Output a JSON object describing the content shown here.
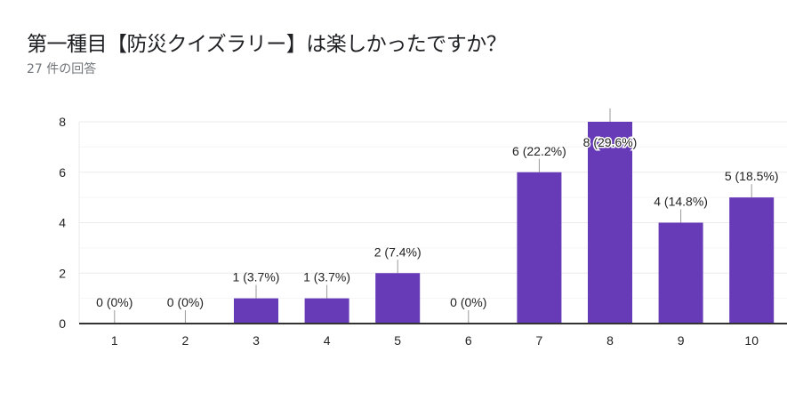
{
  "header": {
    "title": "第一種目【防災クイズラリー】は楽しかったですか？",
    "response_count": "27 件の回答"
  },
  "colors": {
    "bar": "#673ab7",
    "grid": "#ebebeb",
    "minor_grid": "#f5f5f5",
    "axis": "#333333",
    "text": "#222222",
    "leader": "#999999"
  },
  "chart_data": {
    "type": "bar",
    "categories": [
      "1",
      "2",
      "3",
      "4",
      "5",
      "6",
      "7",
      "8",
      "9",
      "10"
    ],
    "values": [
      0,
      0,
      1,
      1,
      2,
      0,
      6,
      8,
      4,
      5
    ],
    "data_labels": [
      "0 (0%)",
      "0 (0%)",
      "1 (3.7%)",
      "1 (3.7%)",
      "2 (7.4%)",
      "0 (0%)",
      "6 (22.2%)",
      "8 (29.6%)",
      "4 (14.8%)",
      "5 (18.5%)"
    ],
    "ylim": [
      0,
      8
    ],
    "yticks": [
      "0",
      "2",
      "4",
      "6",
      "8"
    ],
    "grid": true,
    "legend": "none"
  }
}
